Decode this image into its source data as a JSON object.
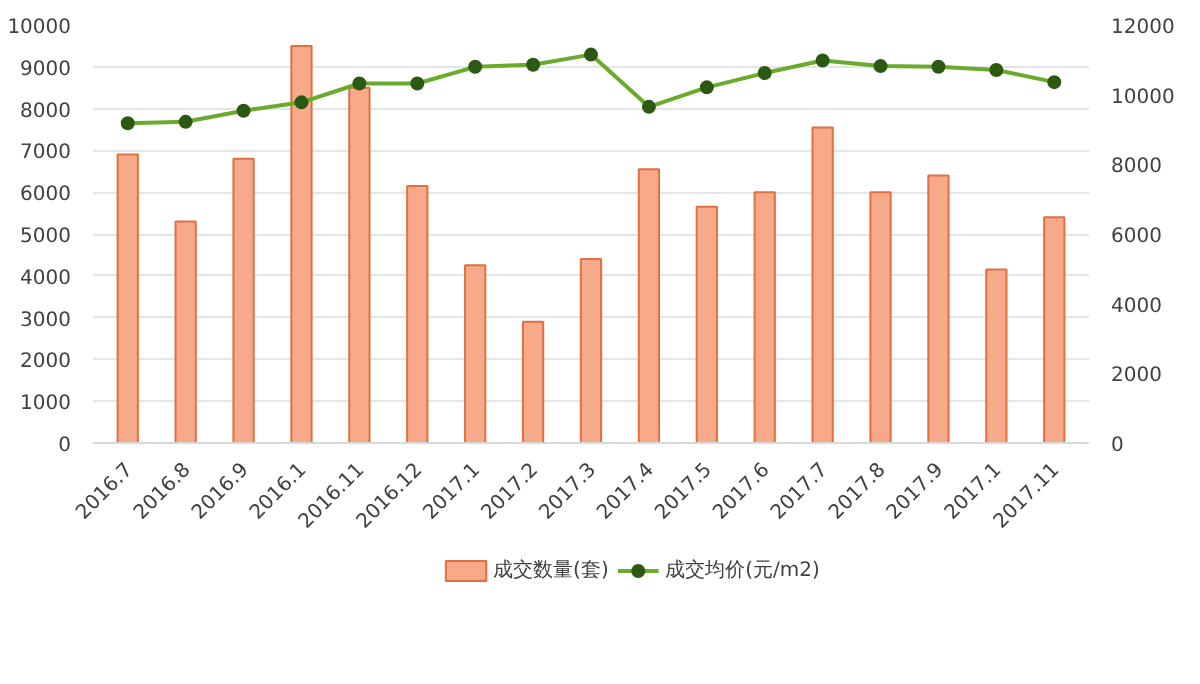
{
  "chart_data": {
    "type": "bar",
    "categories": [
      "2016.7",
      "2016.8",
      "2016.9",
      "2016.1",
      "2016.11",
      "2016.12",
      "2017.1",
      "2017.2",
      "2017.3",
      "2017.4",
      "2017.5",
      "2017.6",
      "2017.7",
      "2017.8",
      "2017.9",
      "2017.1",
      "2017.11"
    ],
    "series": [
      {
        "name": "成交数量(套)",
        "color": "#f8a98a",
        "values": [
          6900,
          5300,
          6800,
          9500,
          8500,
          6150,
          4250,
          2900,
          4400,
          6550,
          5650,
          6000,
          7550,
          6000,
          6400,
          4150,
          5400
        ]
      },
      {
        "name": "成交均价(元/m2)",
        "color": "#6aab2e",
        "type": "line",
        "axis": "y2",
        "marker": "circle",
        "values": [
          9180,
          9220,
          9540,
          9780,
          10320,
          10320,
          10800,
          10860,
          11150,
          9650,
          10210,
          10620,
          10980,
          10820,
          10800,
          10710,
          10360
        ]
      }
    ],
    "ylim": [
      0,
      10000
    ],
    "yticks": [
      0,
      1000,
      2000,
      3000,
      4000,
      5000,
      6000,
      7000,
      8000,
      9000,
      10000
    ],
    "y2lim": [
      0,
      12000
    ],
    "y2ticks": [
      0,
      2000,
      4000,
      6000,
      8000,
      10000,
      12000
    ],
    "grid": "y",
    "legend": "bottom"
  }
}
